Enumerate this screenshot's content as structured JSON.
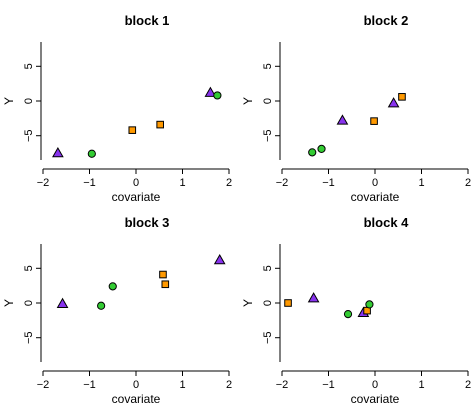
{
  "chart_data": [
    {
      "type": "scatter",
      "title": "block 1",
      "xlabel": "covariate",
      "ylabel": "Y",
      "xlim": [
        -2,
        2
      ],
      "ylim": [
        -8.5,
        8.5
      ],
      "xticks": [
        -2,
        -1,
        0,
        1,
        2
      ],
      "yticks": [
        -5,
        0,
        5
      ],
      "grid": false,
      "points": [
        {
          "x": -1.68,
          "y": -7.5,
          "shape": "triangle"
        },
        {
          "x": -0.95,
          "y": -7.6,
          "shape": "circle"
        },
        {
          "x": -0.08,
          "y": -4.2,
          "shape": "square"
        },
        {
          "x": 0.52,
          "y": -3.4,
          "shape": "square"
        },
        {
          "x": 1.6,
          "y": 1.2,
          "shape": "triangle"
        },
        {
          "x": 1.75,
          "y": 0.8,
          "shape": "circle"
        }
      ]
    },
    {
      "type": "scatter",
      "title": "block 2",
      "xlabel": "covariate",
      "ylabel": "Y",
      "xlim": [
        -2,
        2
      ],
      "ylim": [
        -8.5,
        8.5
      ],
      "xticks": [
        -2,
        -1,
        0,
        1,
        2
      ],
      "yticks": [
        -5,
        0,
        5
      ],
      "grid": false,
      "points": [
        {
          "x": -1.35,
          "y": -7.4,
          "shape": "circle"
        },
        {
          "x": -1.15,
          "y": -6.9,
          "shape": "circle"
        },
        {
          "x": -0.7,
          "y": -2.8,
          "shape": "triangle"
        },
        {
          "x": -0.02,
          "y": -2.9,
          "shape": "square"
        },
        {
          "x": 0.4,
          "y": -0.3,
          "shape": "triangle"
        },
        {
          "x": 0.58,
          "y": 0.6,
          "shape": "square"
        }
      ]
    },
    {
      "type": "scatter",
      "title": "block 3",
      "xlabel": "covariate",
      "ylabel": "Y",
      "xlim": [
        -2,
        2
      ],
      "ylim": [
        -8.5,
        8.5
      ],
      "xticks": [
        -2,
        -1,
        0,
        1,
        2
      ],
      "yticks": [
        -5,
        0,
        5
      ],
      "grid": false,
      "points": [
        {
          "x": -1.58,
          "y": -0.1,
          "shape": "triangle"
        },
        {
          "x": -0.75,
          "y": -0.4,
          "shape": "circle"
        },
        {
          "x": -0.5,
          "y": 2.4,
          "shape": "circle"
        },
        {
          "x": 0.58,
          "y": 4.1,
          "shape": "square"
        },
        {
          "x": 0.63,
          "y": 2.7,
          "shape": "square"
        },
        {
          "x": 1.8,
          "y": 6.2,
          "shape": "triangle"
        }
      ]
    },
    {
      "type": "scatter",
      "title": "block 4",
      "xlabel": "covariate",
      "ylabel": "Y",
      "xlim": [
        -2,
        2
      ],
      "ylim": [
        -8.5,
        8.5
      ],
      "xticks": [
        -2,
        -1,
        0,
        1,
        2
      ],
      "yticks": [
        -5,
        0,
        5
      ],
      "grid": false,
      "points": [
        {
          "x": -1.87,
          "y": 0.0,
          "shape": "square"
        },
        {
          "x": -1.32,
          "y": 0.7,
          "shape": "triangle"
        },
        {
          "x": -0.58,
          "y": -1.6,
          "shape": "circle"
        },
        {
          "x": -0.25,
          "y": -1.4,
          "shape": "triangle"
        },
        {
          "x": -0.17,
          "y": -1.1,
          "shape": "square"
        },
        {
          "x": -0.12,
          "y": -0.2,
          "shape": "circle"
        }
      ]
    }
  ],
  "colors": {
    "circle": "#33cc33",
    "square": "#ff9900",
    "triangle": "#8833ee",
    "axis": "#000000"
  }
}
